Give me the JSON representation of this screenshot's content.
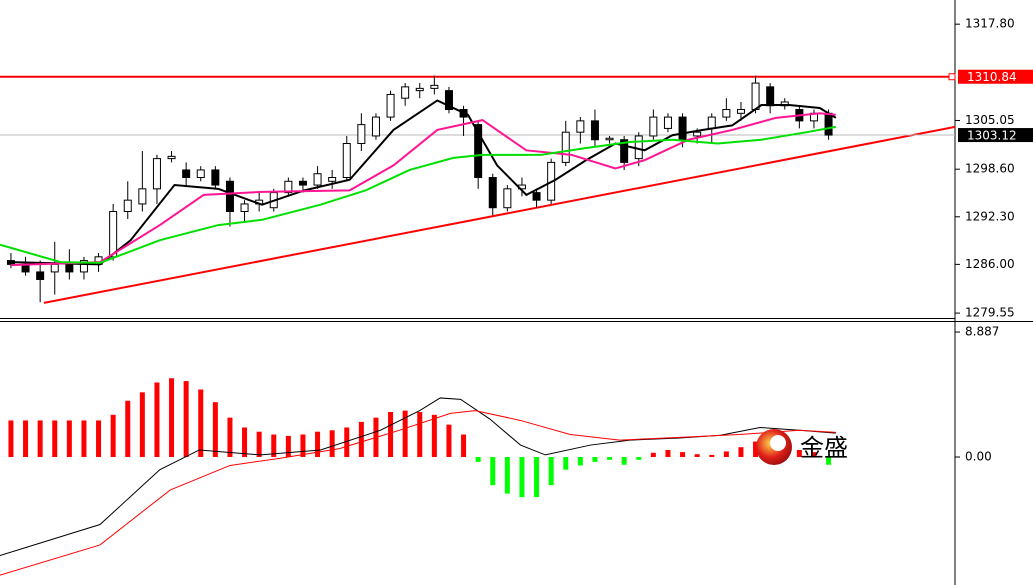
{
  "chart_data": [
    {
      "type": "candlestick",
      "x": [
        0,
        1,
        2,
        3,
        4,
        5,
        6,
        7,
        8,
        9,
        10,
        11,
        12,
        13,
        14,
        15,
        16,
        17,
        18,
        19,
        20,
        21,
        22,
        23,
        24,
        25,
        26,
        27,
        28,
        29,
        30,
        31,
        32,
        33,
        34,
        35,
        36,
        37,
        38,
        39,
        40,
        41,
        42,
        43,
        44,
        45,
        46,
        47,
        48,
        49,
        50,
        51,
        52,
        53,
        54,
        55,
        56
      ],
      "open": [
        1286.5,
        1286,
        1285,
        1285,
        1286,
        1285,
        1286,
        1287,
        1293,
        1294,
        1296,
        1300,
        1298.5,
        1297.5,
        1298.5,
        1297,
        1293,
        1294,
        1293.5,
        1295.5,
        1297,
        1296.5,
        1297,
        1297.5,
        1302,
        1303,
        1305.5,
        1308,
        1309,
        1309.3,
        1309,
        1306.5,
        1304.5,
        1297.5,
        1293.5,
        1296,
        1295.5,
        1294.5,
        1299.5,
        1303.5,
        1305,
        1302.5,
        1302.5,
        1300,
        1303,
        1304,
        1305.5,
        1303,
        1304,
        1305.5,
        1306,
        1306.5,
        1309.5,
        1307,
        1306.5,
        1305,
        1306
      ],
      "high": [
        1287.5,
        1287,
        1286.5,
        1289,
        1288,
        1287,
        1287.5,
        1294,
        1297,
        1301,
        1300.5,
        1301,
        1299.5,
        1299,
        1299,
        1297.5,
        1294.5,
        1295.5,
        1296,
        1297.5,
        1297.5,
        1299,
        1298.5,
        1303,
        1306,
        1306,
        1309,
        1310,
        1310,
        1311,
        1309.5,
        1307,
        1305,
        1298,
        1296.5,
        1297.5,
        1296,
        1300,
        1305,
        1305.5,
        1306.5,
        1303,
        1303,
        1303.5,
        1306.5,
        1306,
        1306,
        1304,
        1306,
        1308,
        1307.5,
        1311,
        1310,
        1308,
        1307,
        1306.5,
        1306.5
      ],
      "low": [
        1285.5,
        1284.5,
        1281,
        1282,
        1284,
        1284,
        1285,
        1286.5,
        1292,
        1293,
        1294,
        1299.5,
        1296.5,
        1297,
        1296,
        1291,
        1291.5,
        1293,
        1293,
        1295,
        1295.5,
        1296,
        1296,
        1297,
        1301,
        1302.5,
        1305,
        1307,
        1308,
        1308.5,
        1306,
        1303,
        1296,
        1292.5,
        1293,
        1295,
        1293.5,
        1294,
        1299,
        1302,
        1301.5,
        1302,
        1298.5,
        1299,
        1302.5,
        1303.5,
        1301.5,
        1302,
        1302,
        1305,
        1305,
        1306,
        1306,
        1306.5,
        1304,
        1304,
        1302.5
      ],
      "close": [
        1286,
        1285,
        1284,
        1286,
        1285,
        1286.5,
        1287,
        1293,
        1294.5,
        1296,
        1300,
        1300.3,
        1297.5,
        1298.5,
        1296.5,
        1293,
        1294,
        1294.5,
        1295.5,
        1297,
        1296.5,
        1298,
        1297.5,
        1302,
        1304.5,
        1305.5,
        1308.5,
        1309.5,
        1309.3,
        1309.7,
        1306.5,
        1305.5,
        1297.5,
        1293.5,
        1296,
        1296.5,
        1294.5,
        1299.5,
        1303.5,
        1305,
        1302.5,
        1302.7,
        1299.5,
        1303,
        1305.5,
        1305.5,
        1302.5,
        1303.5,
        1305.5,
        1306.5,
        1306.5,
        1310,
        1307,
        1307.5,
        1305,
        1306,
        1303.12
      ],
      "up_color": "#ffffff",
      "down_color": "#000000",
      "wick_color": "#000000",
      "series": [
        {
          "color": "#000000",
          "x": [
            0,
            6.1,
            8.2,
            11.2,
            14.2,
            17.2,
            20.1,
            23.2,
            26.2,
            29.2,
            31.3,
            33.3,
            35.3,
            37.3,
            39.4,
            41.4,
            43.4,
            45.3,
            47.4,
            49.4,
            51.4,
            53.3,
            55.4,
            56.5
          ],
          "values": [
            1286.3,
            1286,
            1289.2,
            1296.5,
            1296,
            1293.9,
            1295.8,
            1297.2,
            1303.8,
            1307.7,
            1305.8,
            1299.1,
            1295.2,
            1297.2,
            1299.8,
            1302,
            1301.1,
            1303.1,
            1303.8,
            1304.4,
            1307.1,
            1307.1,
            1306.7,
            1305.4
          ]
        },
        {
          "color": "#ff1493",
          "x": [
            0,
            6.1,
            10.2,
            13.2,
            17.2,
            23.2,
            26.2,
            29.2,
            32.3,
            35.3,
            38.4,
            41.4,
            43.4,
            46.4,
            49.4,
            52.4,
            55.4,
            56.5
          ],
          "values": [
            1285.9,
            1286.3,
            1291.2,
            1295.2,
            1295.6,
            1295.8,
            1299.1,
            1303.8,
            1305.1,
            1301.1,
            1300.5,
            1298.7,
            1299.8,
            1302.5,
            1303.8,
            1305.4,
            1306,
            1305.8
          ]
        },
        {
          "color": "#00e000",
          "x": [
            -0.75,
            3.4,
            6.1,
            10.2,
            14.2,
            17.2,
            21.2,
            24.3,
            27.3,
            30.3,
            32.3,
            36.3,
            39.4,
            42.4,
            45.3,
            48.4,
            51.4,
            54.5,
            56.5
          ],
          "values": [
            1288.6,
            1286.3,
            1286.2,
            1289.2,
            1291.2,
            1291.9,
            1293.9,
            1295.8,
            1298.5,
            1300.1,
            1300.5,
            1300.5,
            1301.4,
            1302.2,
            1302.5,
            1302,
            1302.5,
            1303.5,
            1304.2
          ]
        }
      ],
      "trendline": {
        "color": "#ff0000",
        "x": [
          2.26,
          64.66
        ],
        "values": [
          1280.9,
          1304.2
        ]
      },
      "resistance": 1310.84,
      "resistance_color": "#ff0000",
      "last_price": 1303.12,
      "last_price_color": "#000000",
      "xlim": [
        -0.75,
        64.66
      ],
      "ylim": [
        1278.9,
        1321.0
      ],
      "yticks": [
        1279.55,
        {
          "value": 1286,
          "label": "1286.00"
        },
        {
          "value": 1292.3,
          "label": "1292.30"
        },
        {
          "value": 1298.6,
          "label": "1298.60"
        },
        1305.05,
        {
          "value": 1317.8,
          "label": "1317.80"
        }
      ]
    },
    {
      "type": "macd",
      "x": [
        0,
        1,
        2,
        3,
        4,
        5,
        6,
        7,
        8,
        9,
        10,
        11,
        12,
        13,
        14,
        15,
        16,
        17,
        18,
        19,
        20,
        21,
        22,
        23,
        24,
        25,
        26,
        27,
        28,
        29,
        30,
        31,
        32,
        33,
        34,
        35,
        36,
        37,
        38,
        39,
        40,
        41,
        42,
        43,
        44,
        45,
        46,
        47,
        48,
        49,
        50,
        51,
        52,
        53,
        54,
        55,
        56
      ],
      "values": [
        2.6,
        2.6,
        2.6,
        2.6,
        2.6,
        2.6,
        2.6,
        3.0,
        4.0,
        4.6,
        5.3,
        5.6,
        5.4,
        4.8,
        3.9,
        2.8,
        2.1,
        1.8,
        1.6,
        1.5,
        1.6,
        1.8,
        1.9,
        2.1,
        2.5,
        2.8,
        3.2,
        3.3,
        3.2,
        3.0,
        2.3,
        1.6,
        -0.35,
        -2.0,
        -2.6,
        -2.85,
        -2.85,
        -2.0,
        -0.9,
        -0.6,
        -0.35,
        -0.2,
        -0.55,
        -0.2,
        0.3,
        0.5,
        0.35,
        0.2,
        0.15,
        0.4,
        0.7,
        1.1,
        1.0,
        0.65,
        0.5,
        0.35,
        -0.55
      ],
      "positive_color": "#ff0000",
      "negative_color": "#00ff00",
      "series": [
        {
          "color": "#000000",
          "x": [
            -0.75,
            6.1,
            10.2,
            12.9,
            17.1,
            21.2,
            25.3,
            28.0,
            29.4,
            30.8,
            32.8,
            34.9,
            36.6,
            39.7,
            42.4,
            45.8,
            48.6,
            51.3,
            54.0,
            56.5
          ],
          "values": [
            -7.0,
            -4.8,
            -0.9,
            0.5,
            0.15,
            0.5,
            1.9,
            3.3,
            4.2,
            4.1,
            2.7,
            0.85,
            0.15,
            0.85,
            1.2,
            1.35,
            1.55,
            2.1,
            1.9,
            1.7
          ]
        },
        {
          "color": "#ff0000",
          "x": [
            -0.75,
            6.1,
            10.9,
            15.0,
            18.4,
            22.5,
            26.6,
            30.1,
            31.8,
            34.9,
            38.3,
            41.7,
            45.8,
            49.9,
            54.0,
            56.5
          ],
          "values": [
            -8.4,
            -6.25,
            -2.35,
            -0.6,
            -0.1,
            0.6,
            1.9,
            3.1,
            3.3,
            2.6,
            1.6,
            1.2,
            1.4,
            1.6,
            1.9,
            1.75
          ]
        }
      ],
      "watermark": "金盛",
      "xlim": [
        -0.75,
        64.66
      ],
      "ylim": [
        -9.1,
        9.6
      ],
      "yticks": [
        8.887,
        {
          "value": 0,
          "label": "0.00"
        }
      ]
    }
  ]
}
